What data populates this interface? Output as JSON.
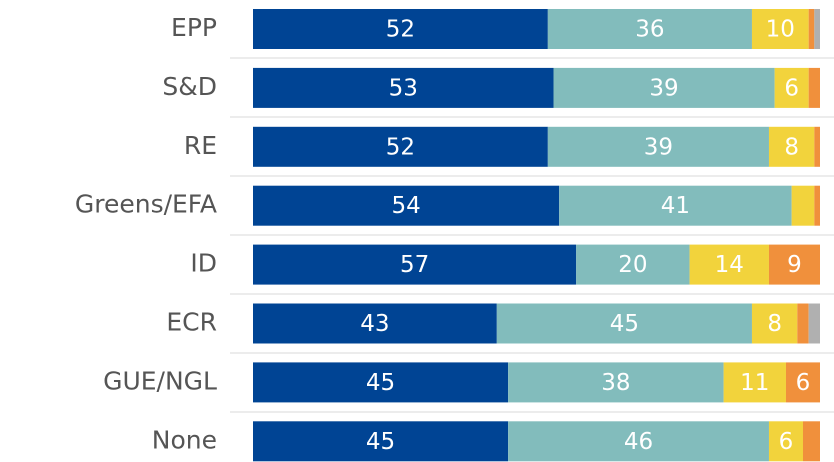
{
  "chart_data": {
    "type": "stacked-barh",
    "categories": [
      "EPP",
      "S&D",
      "RE",
      "Greens/EFA",
      "ID",
      "ECR",
      "GUE/NGL",
      "None"
    ],
    "series": [
      {
        "color": "#004494",
        "values": [
          52,
          53,
          52,
          54,
          57,
          43,
          45,
          45
        ],
        "value_labels": [
          "52",
          "53",
          "52",
          "54",
          "57",
          "43",
          "45",
          "45"
        ]
      },
      {
        "color": "#82bcbc",
        "values": [
          36,
          39,
          39,
          41,
          20,
          45,
          38,
          46
        ],
        "value_labels": [
          "36",
          "39",
          "39",
          "41",
          "20",
          "45",
          "38",
          "46"
        ]
      },
      {
        "color": "#f2d33c",
        "values": [
          10,
          6,
          8,
          4,
          14,
          8,
          11,
          6
        ],
        "value_labels": [
          "10",
          "6",
          "8",
          null,
          "14",
          "8",
          "11",
          "6"
        ]
      },
      {
        "color": "#f0903c",
        "values": [
          1,
          2,
          1,
          1,
          9,
          2,
          6,
          3
        ],
        "value_labels": [
          null,
          null,
          null,
          null,
          "9",
          null,
          "6",
          null
        ]
      },
      {
        "color": "#b0b0b0",
        "values": [
          1,
          0,
          0,
          0,
          0,
          2,
          0,
          0
        ],
        "value_labels": [
          null,
          null,
          null,
          null,
          null,
          null,
          null,
          null
        ]
      }
    ]
  }
}
